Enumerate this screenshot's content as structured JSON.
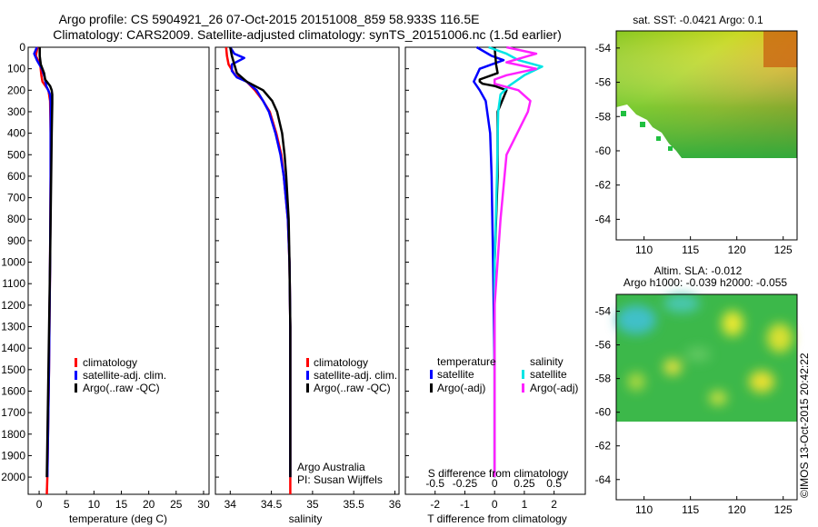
{
  "title": {
    "line1": "Argo profile: CS 5904921_26 07-Oct-2015 20151008_859 58.933S 116.5E",
    "line2": "Climatology: CARS2009. Satellite-adjusted climatology: synTS_20151006.nc (1.5d earlier)"
  },
  "colors": {
    "climatology": "#ff0000",
    "satellite": "#0000ff",
    "argo": "#000000",
    "sal_satellite": "#00e5e5",
    "sal_argo": "#ff22ff"
  },
  "chart_data": [
    {
      "id": "temperature",
      "type": "line",
      "xlabel": "temperature (deg C)",
      "ylabel": "",
      "xlim": [
        -2,
        31
      ],
      "ylim": [
        2080,
        0
      ],
      "xticks": [
        0,
        5,
        10,
        15,
        20,
        25,
        30
      ],
      "xtick_labels": [
        "0",
        "5",
        "10",
        "15",
        "20",
        "25",
        "30"
      ],
      "yticks": [
        0,
        100,
        200,
        300,
        400,
        500,
        600,
        700,
        800,
        900,
        1000,
        1100,
        1200,
        1300,
        1400,
        1500,
        1600,
        1700,
        1800,
        1900,
        2000
      ],
      "ytick_labels": [
        "0",
        "100",
        "200",
        "300",
        "400",
        "500",
        "600",
        "700",
        "800",
        "900",
        "1000",
        "1100",
        "1200",
        "1300",
        "1400",
        "1500",
        "1600",
        "1700",
        "1800",
        "1900",
        "2000"
      ],
      "legend": [
        "climatology",
        "satellite-adj. clim.",
        "Argo(..raw -QC)"
      ],
      "series": [
        {
          "name": "climatology",
          "depth": [
            0,
            40,
            80,
            130,
            160,
            200,
            250,
            400,
            600,
            1000,
            1500,
            2000,
            2080
          ],
          "values": [
            -0.3,
            -0.6,
            0.2,
            0.4,
            0.6,
            1.7,
            2.0,
            2.1,
            2.1,
            2.0,
            1.8,
            1.5,
            1.4
          ]
        },
        {
          "name": "satellite-adj. clim.",
          "depth": [
            0,
            30,
            60,
            100,
            140,
            180,
            220,
            260,
            400,
            600,
            1000,
            1500,
            2000
          ],
          "values": [
            -0.4,
            -0.9,
            -0.4,
            0.5,
            1.0,
            1.3,
            2.0,
            2.1,
            2.1,
            2.1,
            2.0,
            1.8,
            1.5
          ]
        },
        {
          "name": "Argo(..raw -QC)",
          "depth": [
            0,
            40,
            80,
            120,
            150,
            180,
            200,
            220,
            260,
            400,
            600,
            1000,
            1500,
            2000
          ],
          "values": [
            0.1,
            0.1,
            0.3,
            0.9,
            1.1,
            2.0,
            2.3,
            2.4,
            2.4,
            2.3,
            2.2,
            2.0,
            1.7,
            1.4
          ]
        }
      ]
    },
    {
      "id": "salinity",
      "type": "line",
      "xlabel": "salinity",
      "xlim": [
        33.82,
        36.05
      ],
      "ylim": [
        2080,
        0
      ],
      "xticks": [
        34,
        34.5,
        35,
        35.5,
        36
      ],
      "xtick_labels": [
        "34",
        "34.5",
        "35",
        "35.5",
        "36"
      ],
      "legend": [
        "climatology",
        "satellite-adj. clim.",
        "Argo(..raw -QC)"
      ],
      "annotation": [
        "Argo Australia",
        "PI: Susan Wijffels"
      ],
      "series": [
        {
          "name": "climatology",
          "depth": [
            0,
            40,
            80,
            130,
            160,
            200,
            250,
            300,
            400,
            500,
            600,
            800,
            1000,
            1300,
            1600,
            2000,
            2080
          ],
          "values": [
            33.95,
            33.96,
            33.98,
            34.06,
            34.2,
            34.3,
            34.4,
            34.48,
            34.56,
            34.62,
            34.65,
            34.7,
            34.72,
            34.73,
            34.73,
            34.73,
            34.73
          ]
        },
        {
          "name": "satellite-adj. clim.",
          "depth": [
            0,
            30,
            50,
            80,
            110,
            140,
            160,
            200,
            250,
            300,
            400,
            500,
            600,
            800,
            1000,
            1300,
            1600,
            2000
          ],
          "values": [
            34.0,
            34.05,
            34.17,
            34.02,
            34.02,
            34.08,
            34.2,
            34.32,
            34.4,
            34.47,
            34.55,
            34.61,
            34.65,
            34.7,
            34.72,
            34.73,
            34.73,
            34.73
          ]
        },
        {
          "name": "Argo(..raw -QC)",
          "depth": [
            0,
            40,
            80,
            120,
            160,
            200,
            250,
            300,
            400,
            500,
            600,
            800,
            1000,
            1300,
            1600,
            2000
          ],
          "values": [
            34.0,
            34.02,
            34.05,
            34.08,
            34.2,
            34.4,
            34.51,
            34.57,
            34.63,
            34.66,
            34.68,
            34.71,
            34.72,
            34.73,
            34.73,
            34.73
          ]
        }
      ]
    },
    {
      "id": "difference",
      "type": "line",
      "xlabel": "T difference from climatology",
      "xlim": [
        -3,
        3.05
      ],
      "ylim": [
        2080,
        0
      ],
      "xticks": [
        -2,
        -1,
        0,
        1,
        2
      ],
      "xtick_labels": [
        "-2",
        "-1",
        "0",
        "1",
        "2"
      ],
      "top_axis_label": "S difference from climatology",
      "top_ticks": [
        -0.5,
        -0.25,
        0,
        0.25,
        0.5
      ],
      "top_tick_labels": [
        "-0.5",
        "-0.25",
        "0",
        "0.25",
        "0.5"
      ],
      "legend_headers": [
        "temperature",
        "salinity"
      ],
      "legend": [
        "satellite",
        "Argo(-adj)",
        "satellite",
        "Argo(-adj)"
      ],
      "series": [
        {
          "name": "temperature satellite",
          "depth": [
            0,
            40,
            60,
            80,
            100,
            160,
            200,
            250,
            400,
            600,
            1000,
            1500,
            2000
          ],
          "values": [
            -0.6,
            -0.1,
            0.3,
            -0.1,
            -0.5,
            -0.7,
            -0.5,
            -0.3,
            -0.15,
            -0.1,
            -0.05,
            0.0,
            0.0
          ]
        },
        {
          "name": "temperature Argo(-adj)",
          "depth": [
            0,
            80,
            120,
            150,
            160,
            170,
            180,
            200,
            300,
            600,
            1000,
            1300,
            1500,
            2000
          ],
          "values": [
            0.0,
            0.05,
            0.1,
            -0.5,
            -0.5,
            -0.4,
            0.0,
            0.4,
            0.1,
            0.1,
            0.0,
            0.0,
            0.0,
            0.0
          ]
        },
        {
          "name": "salinity satellite",
          "depth": [
            0,
            30,
            60,
            90,
            130,
            180,
            220,
            300,
            600,
            1000,
            1500,
            2000
          ],
          "values": [
            -0.05,
            0.1,
            0.2,
            0.4,
            0.25,
            0.12,
            0.05,
            0.03,
            0.02,
            0.0,
            0.0,
            0.0
          ]
        },
        {
          "name": "salinity Argo(-adj)",
          "depth": [
            0,
            30,
            70,
            100,
            130,
            150,
            170,
            200,
            250,
            300,
            500,
            800,
            1200,
            1600,
            2000
          ],
          "values": [
            0.1,
            0.35,
            0.1,
            0.35,
            0.1,
            0.0,
            0.0,
            0.2,
            0.3,
            0.28,
            0.1,
            0.05,
            0.0,
            0.0,
            0.0
          ]
        }
      ]
    },
    {
      "id": "sst_map",
      "type": "heatmap",
      "title": "sat. SST: -0.0421  Argo: 0.1",
      "xlim": [
        107,
        126.5
      ],
      "ylim": [
        -65.2,
        -53
      ],
      "xticks": [
        110,
        115,
        120,
        125
      ],
      "xtick_labels": [
        "110",
        "115",
        "120",
        "125"
      ],
      "yticks": [
        -54,
        -56,
        -58,
        -60,
        -62,
        -64
      ],
      "ytick_labels": [
        "-54",
        "-56",
        "-58",
        "-60",
        "-62",
        "-64"
      ],
      "data_lat_range": [
        -53,
        -60
      ]
    },
    {
      "id": "sla_map",
      "type": "heatmap",
      "title_line1": "Altim. SLA: -0.012",
      "title_line2": "Argo h1000: -0.039 h2000: -0.055",
      "xlim": [
        107,
        126.5
      ],
      "ylim": [
        -65.2,
        -53
      ],
      "xticks": [
        110,
        115,
        120,
        125
      ],
      "xtick_labels": [
        "110",
        "115",
        "120",
        "125"
      ],
      "yticks": [
        -54,
        -56,
        -58,
        -60,
        -62,
        -64
      ],
      "ytick_labels": [
        "-54",
        "-56",
        "-58",
        "-60",
        "-62",
        "-64"
      ],
      "data_lat_range": [
        -53,
        -60
      ]
    }
  ],
  "footer": "©IMOS 13-Oct-2015 20:42:22"
}
